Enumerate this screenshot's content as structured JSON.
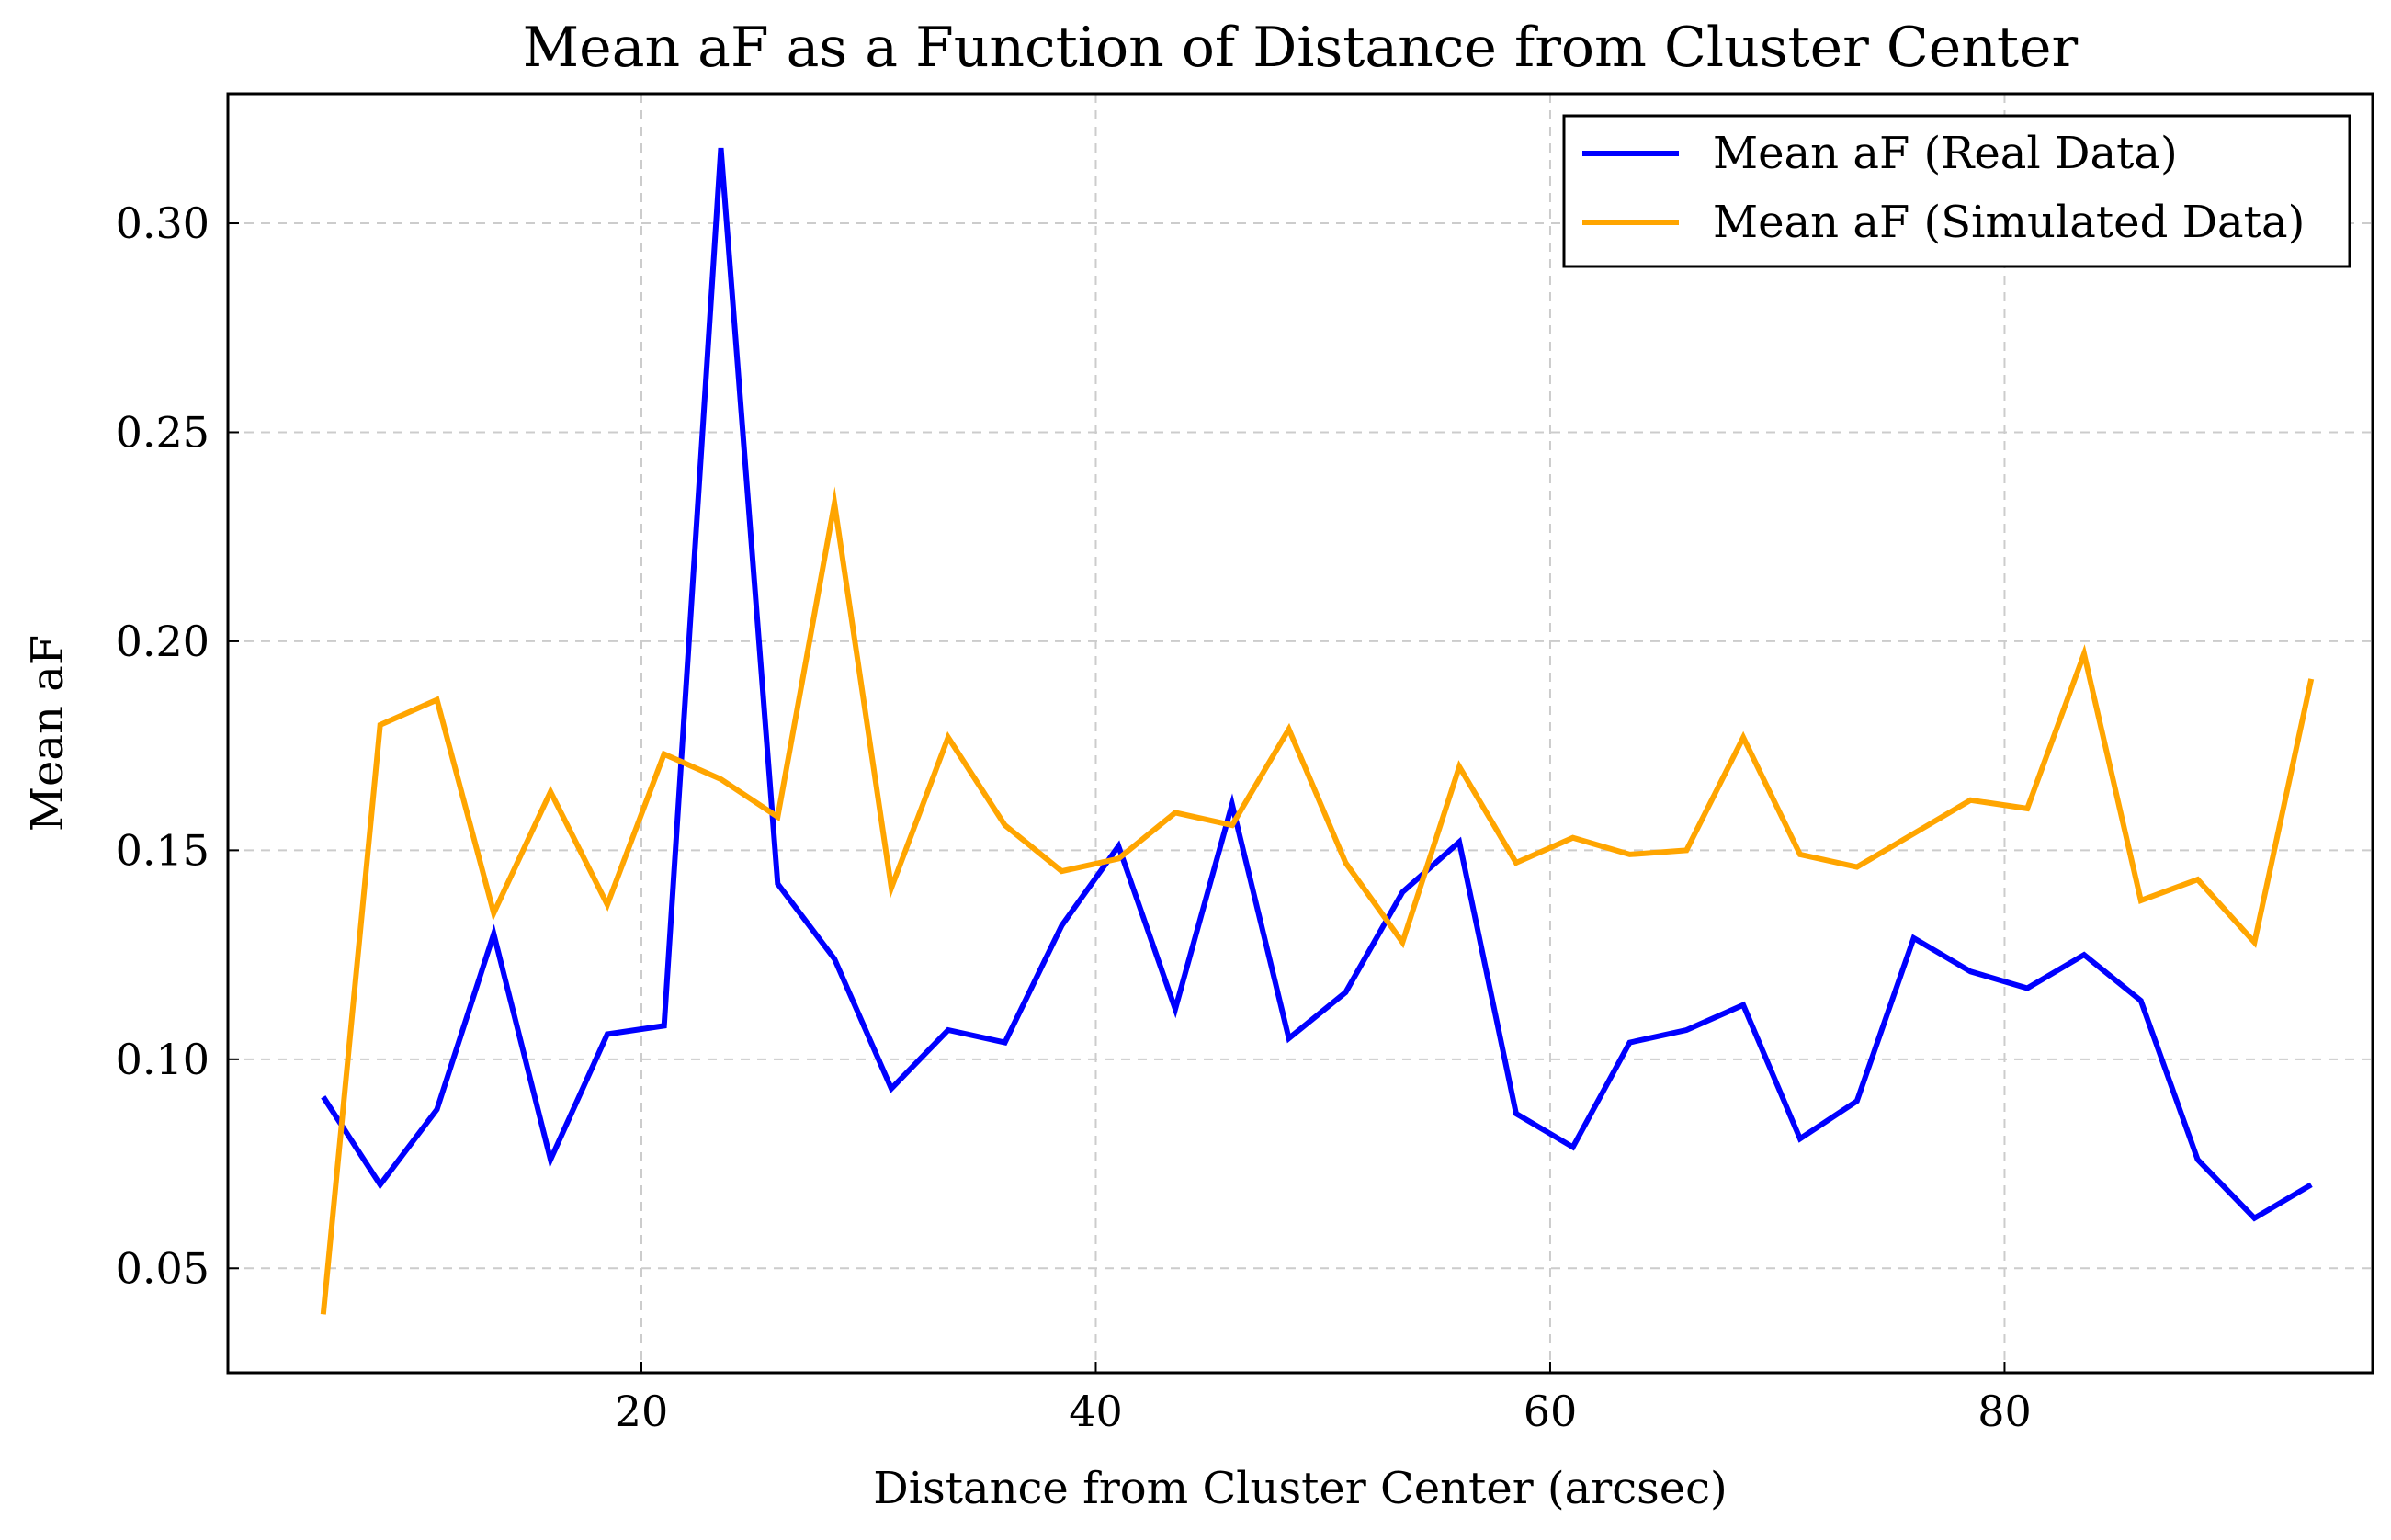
{
  "chart_data": {
    "type": "line",
    "title": "Mean aF as a Function of Distance from Cluster Center",
    "xlabel": "Distance from Cluster Center (arcsec)",
    "ylabel": "Mean aF",
    "xlim": [
      1.8,
      96.2
    ],
    "ylim": [
      0.025,
      0.331
    ],
    "xticks": [
      20,
      40,
      60,
      80
    ],
    "yticks": [
      0.05,
      0.1,
      0.15,
      0.2,
      0.25,
      0.3
    ],
    "xtick_labels": [
      "20",
      "40",
      "60",
      "80"
    ],
    "ytick_labels": [
      "0.05",
      "0.10",
      "0.15",
      "0.20",
      "0.25",
      "0.30"
    ],
    "grid": true,
    "legend_position": "top-right",
    "x": [
      6.0,
      8.5,
      11.0,
      13.5,
      16.0,
      18.5,
      21.0,
      23.5,
      26.0,
      28.5,
      31.0,
      33.5,
      36.0,
      38.5,
      41.0,
      43.5,
      46.0,
      48.5,
      51.0,
      53.5,
      56.0,
      58.5,
      61.0,
      63.5,
      66.0,
      68.5,
      71.0,
      73.5,
      76.0,
      78.5,
      81.0,
      83.5,
      86.0,
      88.5,
      91.0,
      93.5
    ],
    "series": [
      {
        "name": "Mean aF (Real Data)",
        "color": "#0000ff",
        "values": [
          0.091,
          0.07,
          0.088,
          0.13,
          0.076,
          0.106,
          0.108,
          0.318,
          0.142,
          0.124,
          0.093,
          0.107,
          0.104,
          0.132,
          0.151,
          0.112,
          0.161,
          0.105,
          0.116,
          0.14,
          0.152,
          0.087,
          0.079,
          0.104,
          0.107,
          0.113,
          0.081,
          0.09,
          0.129,
          0.121,
          0.117,
          0.125,
          0.114,
          0.076,
          0.062,
          0.07
        ]
      },
      {
        "name": "Mean aF (Simulated Data)",
        "color": "#ffa500",
        "values": [
          0.039,
          0.18,
          0.186,
          0.135,
          0.164,
          0.137,
          0.173,
          0.167,
          0.158,
          0.233,
          0.141,
          0.177,
          0.156,
          0.145,
          0.148,
          0.159,
          0.156,
          0.179,
          0.147,
          0.128,
          0.17,
          0.147,
          0.153,
          0.149,
          0.15,
          0.177,
          0.149,
          0.146,
          0.154,
          0.162,
          0.16,
          0.197,
          0.138,
          0.143,
          0.128,
          0.191
        ]
      }
    ]
  }
}
